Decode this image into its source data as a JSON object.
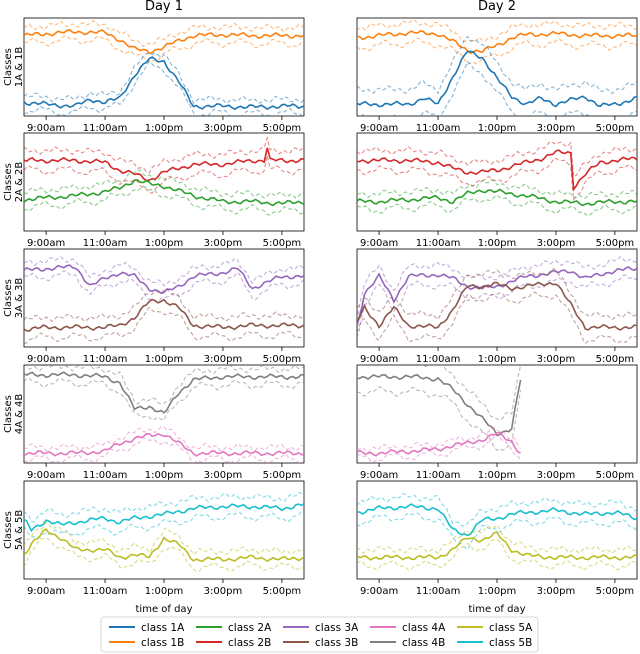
{
  "chart_data": {
    "type": "line",
    "columns": [
      "Day 1",
      "Day 2"
    ],
    "xlabel": "time of day",
    "xticks": [
      "9:00am",
      "11:00am",
      "1:00pm",
      "3:00pm",
      "5:00pm"
    ],
    "x_range_hours": [
      8.25,
      17.75
    ],
    "y_range": [
      0,
      1
    ],
    "grid": false,
    "legend_location": "bottom-center",
    "line_styles": {
      "mean": "solid",
      "band": "dashed"
    },
    "colors": {
      "class 1A": "#1f77b4",
      "class 1B": "#ff7f0e",
      "class 2A": "#2ca02c",
      "class 2B": "#d62728",
      "class 3A": "#9467bd",
      "class 3B": "#8c564b",
      "class 4A": "#e377c2",
      "class 4B": "#7f7f7f",
      "class 5A": "#bcbd22",
      "class 5B": "#17becf"
    },
    "legend": [
      "class 1A",
      "class 1B",
      "class 2A",
      "class 2B",
      "class 3A",
      "class 3B",
      "class 4A",
      "class 4B",
      "class 5A",
      "class 5B"
    ],
    "rows": [
      {
        "label": "Classes\n1A & 1B",
        "panels": [
          {
            "column": "Day 1",
            "series": [
              {
                "name": "class 1B",
                "band": 0.08,
                "x": [
                  8.25,
                  9,
                  10,
                  11,
                  11.5,
                  12,
                  12.5,
                  13,
                  13.5,
                  14,
                  15,
                  16,
                  17,
                  17.75
                ],
                "y": [
                  0.82,
                  0.84,
                  0.86,
                  0.85,
                  0.78,
                  0.68,
                  0.66,
                  0.7,
                  0.77,
                  0.82,
                  0.83,
                  0.82,
                  0.82,
                  0.82
                ]
              },
              {
                "name": "class 1A",
                "band": 0.07,
                "x": [
                  8.25,
                  9,
                  10,
                  10.5,
                  11,
                  11.5,
                  12,
                  12.5,
                  13,
                  13.5,
                  14,
                  15,
                  16,
                  17,
                  17.75
                ],
                "y": [
                  0.14,
                  0.12,
                  0.1,
                  0.17,
                  0.14,
                  0.18,
                  0.42,
                  0.58,
                  0.56,
                  0.35,
                  0.1,
                  0.1,
                  0.09,
                  0.1,
                  0.1
                ]
              }
            ]
          },
          {
            "column": "Day 2",
            "series": [
              {
                "name": "class 1B",
                "band": 0.1,
                "x": [
                  8.25,
                  9,
                  10,
                  11,
                  11.5,
                  12,
                  12.5,
                  13,
                  13.5,
                  14,
                  15,
                  16,
                  17,
                  17.75
                ],
                "y": [
                  0.8,
                  0.82,
                  0.85,
                  0.84,
                  0.76,
                  0.67,
                  0.66,
                  0.72,
                  0.8,
                  0.83,
                  0.84,
                  0.82,
                  0.82,
                  0.82
                ]
              },
              {
                "name": "class 1A",
                "band": 0.15,
                "x": [
                  8.25,
                  9,
                  10,
                  10.5,
                  11,
                  11.5,
                  12,
                  12.5,
                  13,
                  13.5,
                  14,
                  14.5,
                  15,
                  16,
                  16.5,
                  17,
                  17.75
                ],
                "y": [
                  0.12,
                  0.12,
                  0.12,
                  0.18,
                  0.12,
                  0.4,
                  0.66,
                  0.6,
                  0.38,
                  0.2,
                  0.12,
                  0.18,
                  0.12,
                  0.2,
                  0.1,
                  0.12,
                  0.18
                ]
              }
            ]
          }
        ]
      },
      {
        "label": "Classes\n2A & 2B",
        "panels": [
          {
            "column": "Day 1",
            "series": [
              {
                "name": "class 2B",
                "band": 0.1,
                "x": [
                  8.25,
                  9,
                  10,
                  11,
                  11.5,
                  12,
                  12.5,
                  13,
                  14,
                  15,
                  16,
                  16.4,
                  16.5,
                  16.6,
                  17,
                  17.75
                ],
                "y": [
                  0.72,
                  0.72,
                  0.72,
                  0.7,
                  0.62,
                  0.58,
                  0.52,
                  0.6,
                  0.68,
                  0.68,
                  0.72,
                  0.72,
                  0.85,
                  0.72,
                  0.72,
                  0.72
                ]
              },
              {
                "name": "class 2A",
                "band": 0.08,
                "x": [
                  8.25,
                  9,
                  10,
                  11,
                  11.5,
                  12,
                  12.5,
                  13,
                  14,
                  15,
                  16,
                  17,
                  17.75
                ],
                "y": [
                  0.32,
                  0.34,
                  0.36,
                  0.4,
                  0.44,
                  0.52,
                  0.48,
                  0.46,
                  0.36,
                  0.3,
                  0.3,
                  0.28,
                  0.3
                ]
              }
            ]
          },
          {
            "column": "Day 2",
            "series": [
              {
                "name": "class 2B",
                "band": 0.1,
                "x": [
                  8.25,
                  9,
                  10,
                  11,
                  11.5,
                  12,
                  12.5,
                  13,
                  14,
                  14.5,
                  15,
                  15.5,
                  15.6,
                  16,
                  16.5,
                  17,
                  17.75
                ],
                "y": [
                  0.72,
                  0.72,
                  0.72,
                  0.7,
                  0.64,
                  0.6,
                  0.6,
                  0.62,
                  0.7,
                  0.74,
                  0.8,
                  0.8,
                  0.45,
                  0.58,
                  0.7,
                  0.72,
                  0.74
                ]
              },
              {
                "name": "class 2A",
                "band": 0.08,
                "x": [
                  8.25,
                  9,
                  10,
                  11,
                  11.5,
                  12,
                  12.5,
                  13,
                  14,
                  15,
                  16,
                  17,
                  17.75
                ],
                "y": [
                  0.3,
                  0.3,
                  0.32,
                  0.34,
                  0.3,
                  0.38,
                  0.42,
                  0.4,
                  0.36,
                  0.3,
                  0.28,
                  0.3,
                  0.3
                ]
              }
            ]
          }
        ]
      },
      {
        "label": "Classes\n3A & 3B",
        "panels": [
          {
            "column": "Day 1",
            "series": [
              {
                "name": "class 3A",
                "band": 0.08,
                "x": [
                  8.25,
                  9,
                  10,
                  10.5,
                  11,
                  11.5,
                  12,
                  12.5,
                  13,
                  13.5,
                  14,
                  15,
                  15.5,
                  16,
                  17,
                  17.75
                ],
                "y": [
                  0.78,
                  0.8,
                  0.82,
                  0.62,
                  0.7,
                  0.76,
                  0.72,
                  0.6,
                  0.55,
                  0.62,
                  0.72,
                  0.76,
                  0.8,
                  0.6,
                  0.72,
                  0.72
                ]
              },
              {
                "name": "class 3B",
                "band": 0.1,
                "x": [
                  8.25,
                  9,
                  10,
                  11,
                  11.5,
                  12,
                  12.5,
                  13,
                  13.5,
                  14,
                  15,
                  16,
                  17,
                  17.75
                ],
                "y": [
                  0.18,
                  0.2,
                  0.2,
                  0.2,
                  0.22,
                  0.3,
                  0.46,
                  0.48,
                  0.4,
                  0.22,
                  0.2,
                  0.22,
                  0.22,
                  0.22
                ]
              }
            ]
          },
          {
            "column": "Day 2",
            "series": [
              {
                "name": "class 3A",
                "band": 0.1,
                "x": [
                  8.25,
                  8.5,
                  9,
                  9.5,
                  10,
                  11,
                  11.5,
                  12,
                  12.5,
                  13,
                  14,
                  15,
                  15.5,
                  16,
                  17,
                  17.75
                ],
                "y": [
                  0.2,
                  0.55,
                  0.72,
                  0.48,
                  0.72,
                  0.74,
                  0.7,
                  0.62,
                  0.6,
                  0.62,
                  0.72,
                  0.76,
                  0.78,
                  0.7,
                  0.78,
                  0.8
                ]
              },
              {
                "name": "class 3B",
                "band": 0.12,
                "x": [
                  8.25,
                  8.5,
                  9,
                  9.5,
                  10,
                  11,
                  11.5,
                  12,
                  12.5,
                  13,
                  13.5,
                  14,
                  15,
                  16,
                  17,
                  17.75
                ],
                "y": [
                  0.25,
                  0.4,
                  0.22,
                  0.4,
                  0.22,
                  0.2,
                  0.38,
                  0.62,
                  0.62,
                  0.64,
                  0.6,
                  0.62,
                  0.66,
                  0.2,
                  0.2,
                  0.2
                ]
              }
            ]
          }
        ]
      },
      {
        "label": "Classes\n4A & 4B",
        "panels": [
          {
            "column": "Day 1",
            "series": [
              {
                "name": "class 4B",
                "band": 0.08,
                "x": [
                  8.25,
                  9,
                  10,
                  11,
                  11.5,
                  12,
                  12.5,
                  13,
                  13.5,
                  14,
                  15,
                  16,
                  17,
                  17.75
                ],
                "y": [
                  0.9,
                  0.9,
                  0.9,
                  0.88,
                  0.82,
                  0.55,
                  0.58,
                  0.5,
                  0.72,
                  0.85,
                  0.88,
                  0.88,
                  0.88,
                  0.88
                ]
              },
              {
                "name": "class 4A",
                "band": 0.06,
                "x": [
                  8.25,
                  9,
                  10,
                  11,
                  11.5,
                  12,
                  12.5,
                  13,
                  13.5,
                  14,
                  15,
                  16,
                  17,
                  17.75
                ],
                "y": [
                  0.1,
                  0.1,
                  0.1,
                  0.12,
                  0.2,
                  0.25,
                  0.28,
                  0.3,
                  0.2,
                  0.1,
                  0.1,
                  0.1,
                  0.1,
                  0.1
                ]
              }
            ]
          },
          {
            "column": "Day 2",
            "series": [
              {
                "name": "class 4B",
                "band": 0.15,
                "x": [
                  8.25,
                  9,
                  10,
                  11,
                  11.5,
                  12,
                  12.5,
                  13,
                  13.5,
                  13.8
                ],
                "y": [
                  0.88,
                  0.88,
                  0.88,
                  0.86,
                  0.75,
                  0.6,
                  0.45,
                  0.3,
                  0.35,
                  0.85
                ]
              },
              {
                "name": "class 4A",
                "band": 0.05,
                "x": [
                  8.25,
                  9,
                  10,
                  11,
                  11.5,
                  12,
                  12.5,
                  13,
                  13.5,
                  13.8
                ],
                "y": [
                  0.1,
                  0.1,
                  0.12,
                  0.14,
                  0.18,
                  0.2,
                  0.24,
                  0.3,
                  0.22,
                  0.1
                ]
              }
            ]
          }
        ]
      },
      {
        "label": "Classes\n5A & 5B",
        "panels": [
          {
            "column": "Day 1",
            "series": [
              {
                "name": "class 5B",
                "band": 0.1,
                "x": [
                  8.25,
                  8.5,
                  9,
                  9.5,
                  10,
                  11,
                  11.5,
                  12,
                  13,
                  14,
                  15,
                  16,
                  17,
                  17.75
                ],
                "y": [
                  0.6,
                  0.5,
                  0.6,
                  0.55,
                  0.58,
                  0.62,
                  0.58,
                  0.62,
                  0.66,
                  0.72,
                  0.74,
                  0.74,
                  0.72,
                  0.76
                ]
              },
              {
                "name": "class 5A",
                "band": 0.08,
                "x": [
                  8.25,
                  8.5,
                  9,
                  9.5,
                  10,
                  11,
                  11.5,
                  12,
                  12.5,
                  13,
                  13.5,
                  14,
                  15,
                  16,
                  17,
                  17.75
                ],
                "y": [
                  0.25,
                  0.35,
                  0.5,
                  0.42,
                  0.3,
                  0.3,
                  0.22,
                  0.25,
                  0.22,
                  0.42,
                  0.35,
                  0.2,
                  0.2,
                  0.22,
                  0.2,
                  0.22
                ]
              }
            ]
          },
          {
            "column": "Day 2",
            "series": [
              {
                "name": "class 5B",
                "band": 0.1,
                "x": [
                  8.25,
                  9,
                  10,
                  11,
                  11.5,
                  12,
                  12.5,
                  13,
                  13.5,
                  14,
                  15,
                  16,
                  17,
                  17.75
                ],
                "y": [
                  0.68,
                  0.72,
                  0.74,
                  0.72,
                  0.5,
                  0.45,
                  0.6,
                  0.62,
                  0.66,
                  0.68,
                  0.7,
                  0.66,
                  0.68,
                  0.62
                ]
              },
              {
                "name": "class 5A",
                "band": 0.08,
                "x": [
                  8.25,
                  9,
                  10,
                  11,
                  11.5,
                  12,
                  12.5,
                  13,
                  13.5,
                  14,
                  15,
                  16,
                  17,
                  17.75
                ],
                "y": [
                  0.22,
                  0.22,
                  0.22,
                  0.22,
                  0.3,
                  0.42,
                  0.4,
                  0.46,
                  0.3,
                  0.24,
                  0.22,
                  0.22,
                  0.22,
                  0.22
                ]
              }
            ]
          }
        ]
      }
    ]
  }
}
